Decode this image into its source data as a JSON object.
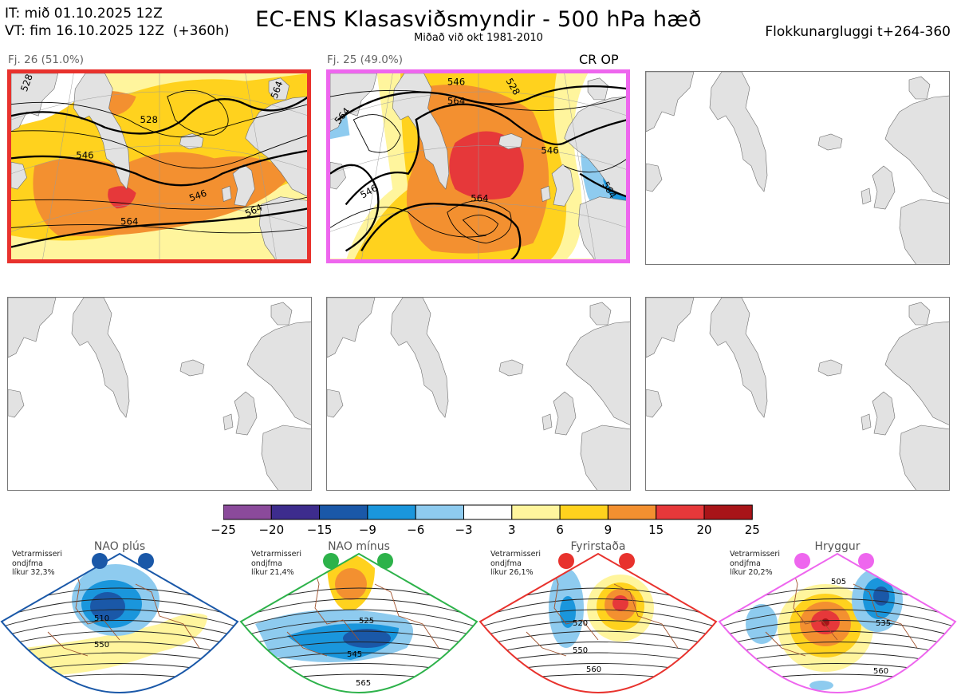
{
  "header": {
    "it_line": "IT: mið 01.10.2025 12Z",
    "vt_line": "VT: fim 16.10.2025 12Z  (+360h)",
    "title": "EC-ENS Klasasviðsmyndir - 500 hPa hæð",
    "subtitle": "Miðað við okt 1981-2010",
    "window": "Flokkunargluggi t+264-360"
  },
  "clusters": [
    {
      "label": "Fj. 26 (51.0%)",
      "border_color": "#e8322d",
      "contours": [
        "528",
        "546",
        "564",
        "546",
        "564",
        "564",
        "528"
      ]
    },
    {
      "label": "Fj. 25 (49.0%)",
      "border_color": "#ee66ee",
      "contours": [
        "546",
        "528",
        "564",
        "546",
        "564",
        "546",
        "564",
        "564"
      ]
    }
  ],
  "cr_op_label": "CR OP",
  "colorbar": {
    "ticks": [
      "−25",
      "−20",
      "−15",
      "−9",
      "−6",
      "−3",
      "3",
      "6",
      "9",
      "15",
      "20",
      "25"
    ],
    "colors": [
      "#8b4a9b",
      "#3d2c8d",
      "#1a58a8",
      "#1a96dc",
      "#8ecbef",
      "#ffffff",
      "#fff59d",
      "#ffd21e",
      "#f39030",
      "#e6383a",
      "#a81418"
    ]
  },
  "regimes": [
    {
      "name": "NAO plús",
      "prob": "Vetrarmisseri\nondjfma\nlíkur 32,3%",
      "color": "#1a58a8",
      "contours": [
        "510",
        "550"
      ]
    },
    {
      "name": "NAO mínus",
      "prob": "Vetrarmisseri\nondjfma\nlíkur 21,4%",
      "color": "#2db24a",
      "contours": [
        "525",
        "545",
        "565"
      ]
    },
    {
      "name": "Fyrirstaða",
      "prob": "Vetrarmisseri\nondjfma\nlíkur 26,1%",
      "color": "#e8322d",
      "contours": [
        "520",
        "550",
        "560"
      ]
    },
    {
      "name": "Hryggur",
      "prob": "Vetrarmisseri\nondjfma\nlíkur 20,2%",
      "color": "#ee66ee",
      "contours": [
        "505",
        "535",
        "560"
      ]
    }
  ]
}
